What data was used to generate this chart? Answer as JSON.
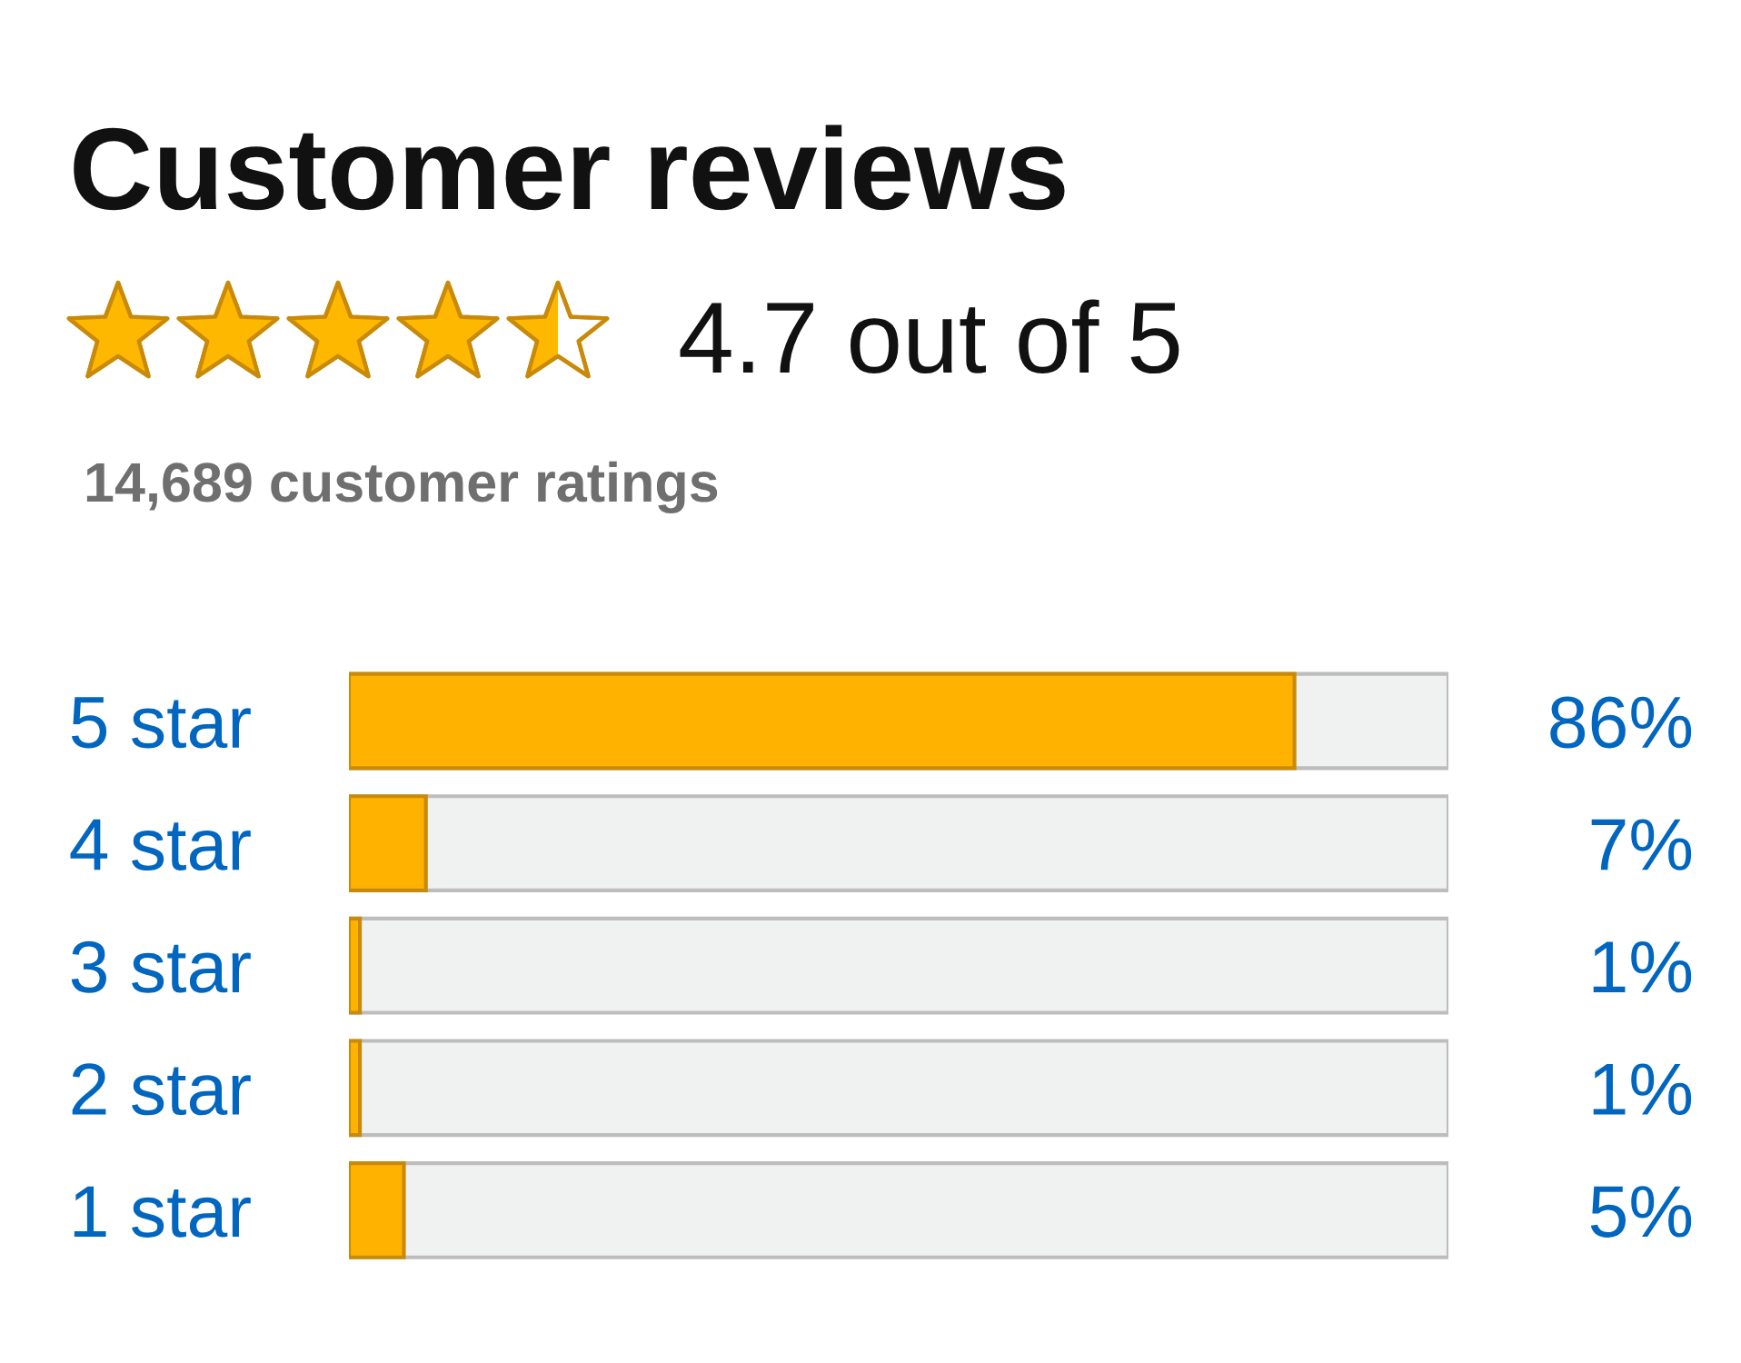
{
  "chart_data": {
    "type": "bar",
    "orientation": "horizontal",
    "title": "Customer reviews",
    "subtitle": "4.7 out of 5",
    "annotations": [
      "14,689 customer ratings"
    ],
    "categories": [
      "5 star",
      "4 star",
      "3 star",
      "2 star",
      "1 star"
    ],
    "values": [
      86,
      7,
      1,
      1,
      5
    ],
    "value_labels": [
      "86%",
      "7%",
      "1%",
      "1%",
      "5%"
    ],
    "color": "#ffb300",
    "xlim": [
      0,
      100
    ],
    "tick_labels": "y"
  }
}
